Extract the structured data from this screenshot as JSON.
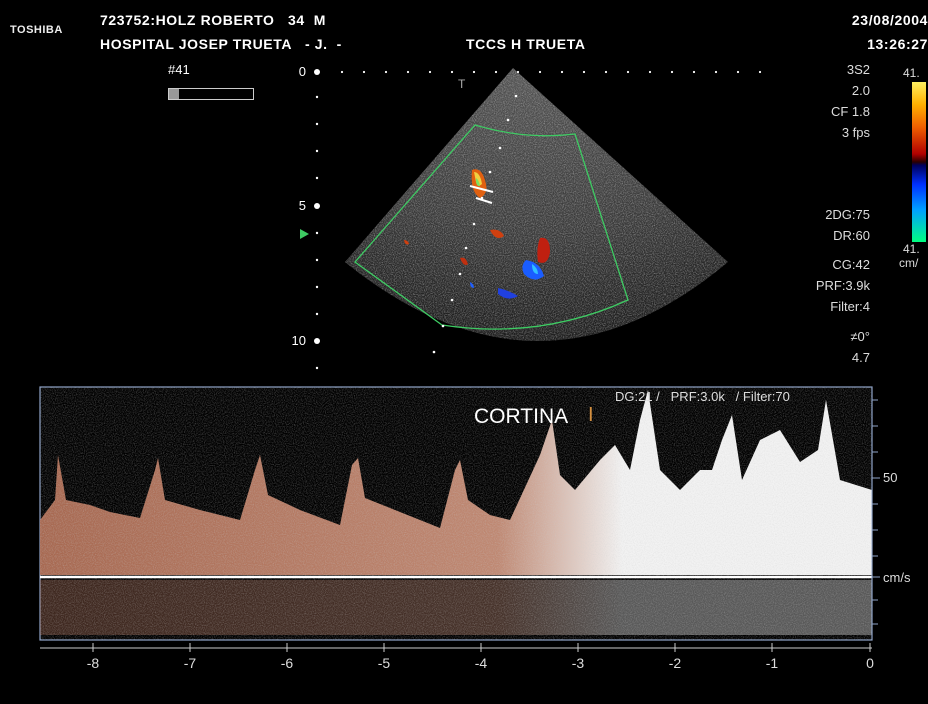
{
  "header": {
    "logo": "TOSHIBA",
    "patient": "723752:HOLZ ROBERTO   34  M",
    "hospital": "HOSPITAL JOSEP TRUETA   - J.  -",
    "site": "TCCS H TRUETA",
    "date": "23/08/2004",
    "time": "13:26:27"
  },
  "frame_label": "#41",
  "params": {
    "probe": "3S2",
    "freq": "2.0",
    "cf": "CF 1.8",
    "fps": "3 fps",
    "dg2d": "2DG:75",
    "dr": "DR:60",
    "cg": "CG:42",
    "prf": "PRF:3.9k",
    "filter": "Filter:4",
    "angle": "≠0°",
    "depth_val": "4.7"
  },
  "color_scale": {
    "top": "41.",
    "bottom": "41.",
    "unit": "cm/"
  },
  "depth_marks": {
    "d0": "0",
    "d5": "5",
    "d10": "10"
  },
  "doppler": {
    "caption": "CORTINA",
    "cursor": "I",
    "settings": "DG:21 /   PRF:3.0k   / Filter:70",
    "velocity_label": "50",
    "velocity_unit": "cm/s",
    "time_labels": [
      "-8",
      "-7",
      "-6",
      "-5",
      "-4",
      "-3",
      "-2",
      "-1",
      "0"
    ]
  }
}
